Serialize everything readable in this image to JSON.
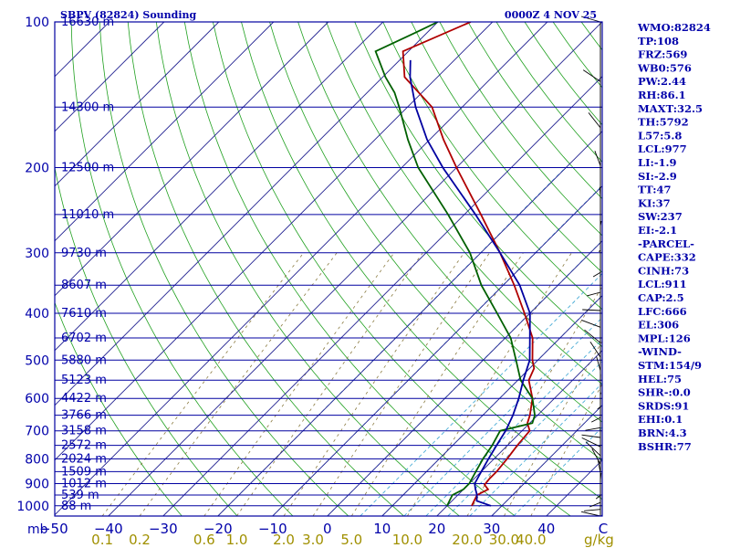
{
  "chart_data": {
    "type": "skew-t log-p sounding",
    "title": "SBPV (82824) Sounding",
    "valid_time": "0000Z  4 NOV 25",
    "pressure_axis_label": "mb",
    "pressure_ticks": [
      100,
      200,
      300,
      400,
      500,
      600,
      700,
      800,
      900,
      1000
    ],
    "temperature_ticks": [
      -50,
      -40,
      -30,
      -20,
      -10,
      0,
      10,
      20,
      30,
      40
    ],
    "temperature_axis_end_label": "C",
    "mixing_ratio_ticks": [
      "0.1",
      "0.2",
      "0.6",
      "1.0",
      "2.0",
      "3.0",
      "5.0",
      "10.0",
      "20.0",
      "30.0",
      "40.0"
    ],
    "mixing_ratio_unit": "g/kg",
    "height_levels": [
      {
        "p": 100,
        "label": "16630 m"
      },
      {
        "p": 150,
        "label": "14300 m"
      },
      {
        "p": 200,
        "label": "12500 m"
      },
      {
        "p": 250,
        "label": "11010 m"
      },
      {
        "p": 300,
        "label": "9730 m"
      },
      {
        "p": 350,
        "label": "8607 m"
      },
      {
        "p": 400,
        "label": "7610 m"
      },
      {
        "p": 450,
        "label": "6702 m"
      },
      {
        "p": 500,
        "label": "5880 m"
      },
      {
        "p": 550,
        "label": "5123 m"
      },
      {
        "p": 600,
        "label": "4422 m"
      },
      {
        "p": 650,
        "label": "3766 m"
      },
      {
        "p": 700,
        "label": "3158 m"
      },
      {
        "p": 750,
        "label": "2572 m"
      },
      {
        "p": 800,
        "label": "2024 m"
      },
      {
        "p": 850,
        "label": "1509 m"
      },
      {
        "p": 900,
        "label": "1012 m"
      },
      {
        "p": 950,
        "label": "539 m"
      },
      {
        "p": 1000,
        "label": "88 m"
      }
    ],
    "series": [
      {
        "name": "temperature",
        "color": "#b00000",
        "points": [
          [
            1000,
            24.5
          ],
          [
            975,
            24.0
          ],
          [
            950,
            23.5
          ],
          [
            925,
            24.5
          ],
          [
            905,
            23.0
          ],
          [
            880,
            22.8
          ],
          [
            850,
            22.8
          ],
          [
            800,
            22.4
          ],
          [
            750,
            21.8
          ],
          [
            700,
            21.4
          ],
          [
            675,
            19.6
          ],
          [
            650,
            18.6
          ],
          [
            600,
            16.0
          ],
          [
            550,
            12.0
          ],
          [
            520,
            10.8
          ],
          [
            500,
            9.0
          ],
          [
            450,
            5.0
          ],
          [
            400,
            -1.0
          ],
          [
            350,
            -8.0
          ],
          [
            300,
            -16.5
          ],
          [
            250,
            -27.0
          ],
          [
            200,
            -40.0
          ],
          [
            175,
            -47.5
          ],
          [
            150,
            -55.5
          ],
          [
            130,
            -66.0
          ],
          [
            115,
            -71.0
          ],
          [
            100,
            -64.0
          ]
        ]
      },
      {
        "name": "dewpoint",
        "color": "#006000",
        "points": [
          [
            1000,
            20.0
          ],
          [
            975,
            19.5
          ],
          [
            950,
            19.0
          ],
          [
            925,
            20.0
          ],
          [
            900,
            20.0
          ],
          [
            850,
            19.0
          ],
          [
            800,
            18.0
          ],
          [
            750,
            17.2
          ],
          [
            700,
            16.0
          ],
          [
            675,
            20.5
          ],
          [
            650,
            19.5
          ],
          [
            600,
            16.0
          ],
          [
            550,
            10.5
          ],
          [
            500,
            6.0
          ],
          [
            450,
            1.0
          ],
          [
            400,
            -6.0
          ],
          [
            350,
            -14.0
          ],
          [
            300,
            -22.0
          ],
          [
            250,
            -33.0
          ],
          [
            200,
            -47.0
          ],
          [
            175,
            -54.0
          ],
          [
            150,
            -61.5
          ],
          [
            140,
            -65.0
          ],
          [
            130,
            -69.5
          ],
          [
            115,
            -76.0
          ],
          [
            105,
            -72.0
          ],
          [
            100,
            -70.0
          ]
        ]
      },
      {
        "name": "parcel",
        "color": "#0000a0",
        "points": [
          [
            1000,
            28.0
          ],
          [
            977,
            24.5
          ],
          [
            950,
            23.5
          ],
          [
            925,
            22.2
          ],
          [
            900,
            21.0
          ],
          [
            850,
            20.0
          ],
          [
            800,
            19.0
          ],
          [
            750,
            18.0
          ],
          [
            700,
            17.0
          ],
          [
            650,
            15.5
          ],
          [
            600,
            13.5
          ],
          [
            550,
            11.0
          ],
          [
            500,
            8.5
          ],
          [
            450,
            4.5
          ],
          [
            400,
            0.0
          ],
          [
            350,
            -7.0
          ],
          [
            300,
            -16.5
          ],
          [
            250,
            -28.0
          ],
          [
            200,
            -42.5
          ],
          [
            175,
            -50.5
          ],
          [
            150,
            -58.5
          ],
          [
            130,
            -65.0
          ],
          [
            120,
            -68.0
          ]
        ]
      }
    ],
    "wind_barbs_count": 30
  },
  "indices": [
    "WMO:82824",
    "TP:108",
    "FRZ:569",
    "WB0:576",
    "PW:2.44",
    "RH:86.1",
    "MAXT:32.5",
    "TH:5792",
    "L57:5.8",
    "LCL:977",
    "LI:-1.9",
    "SI:-2.9",
    "TT:47",
    "KI:37",
    "SW:237",
    "EI:-2.1",
    "-PARCEL-",
    "CAPE:332",
    "CINH:73",
    "LCL:911",
    "CAP:2.5",
    "LFC:666",
    "EL:306",
    "MPL:126",
    "-WIND-",
    "STM:154/9",
    "HEL:75",
    "SHR-:0.0",
    "SRDS:91",
    "EHI:0.1",
    "BRN:4.3",
    "BSHR:77"
  ]
}
